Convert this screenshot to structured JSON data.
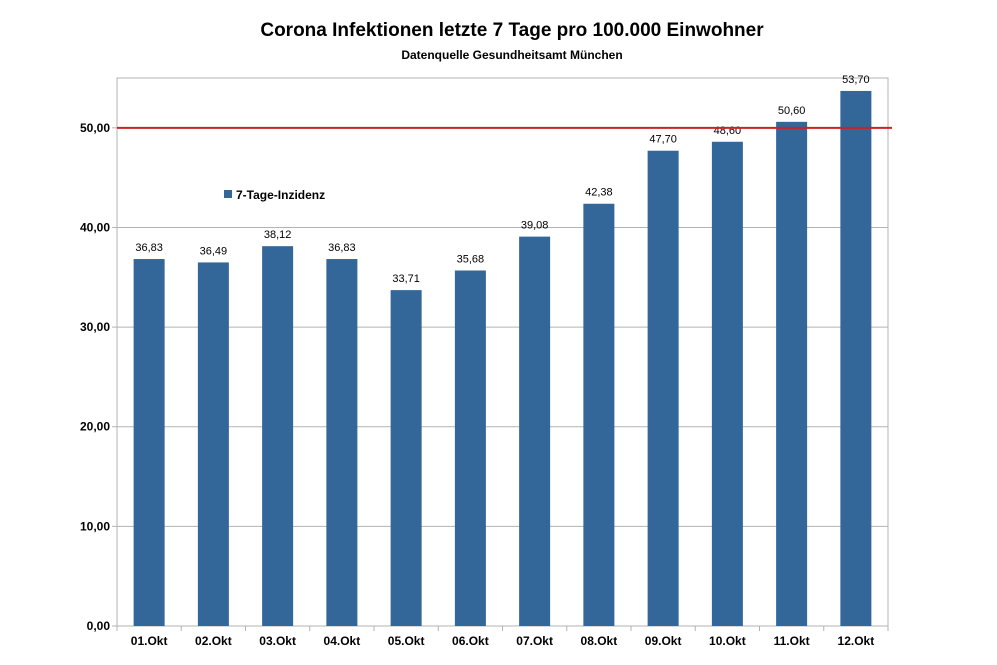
{
  "chart_data": {
    "type": "bar",
    "title": "Corona Infektionen letzte 7 Tage pro 100.000 Einwohner",
    "subtitle": "Datenquelle Gesundheitsamt München",
    "categories": [
      "01.Okt",
      "02.Okt",
      "03.Okt",
      "04.Okt",
      "05.Okt",
      "06.Okt",
      "07.Okt",
      "08.Okt",
      "09.Okt",
      "10.Okt",
      "11.Okt",
      "12.Okt"
    ],
    "series": [
      {
        "name": "7-Tage-Inzidenz",
        "values": [
          36.83,
          36.49,
          38.12,
          36.83,
          33.71,
          35.68,
          39.08,
          42.38,
          47.7,
          48.6,
          50.6,
          53.7
        ],
        "color": "#336699"
      }
    ],
    "data_labels": [
      "36,83",
      "36,49",
      "38,12",
      "36,83",
      "33,71",
      "35,68",
      "39,08",
      "42,38",
      "47,70",
      "48,60",
      "50,60",
      "53,70"
    ],
    "y_ticks": [
      "0,00",
      "10,00",
      "20,00",
      "30,00",
      "40,00",
      "50,00"
    ],
    "ylim": [
      0,
      55
    ],
    "threshold": {
      "value": 50,
      "color": "#cc2222"
    },
    "grid": true,
    "legend_position": "upper-left inside plot"
  }
}
